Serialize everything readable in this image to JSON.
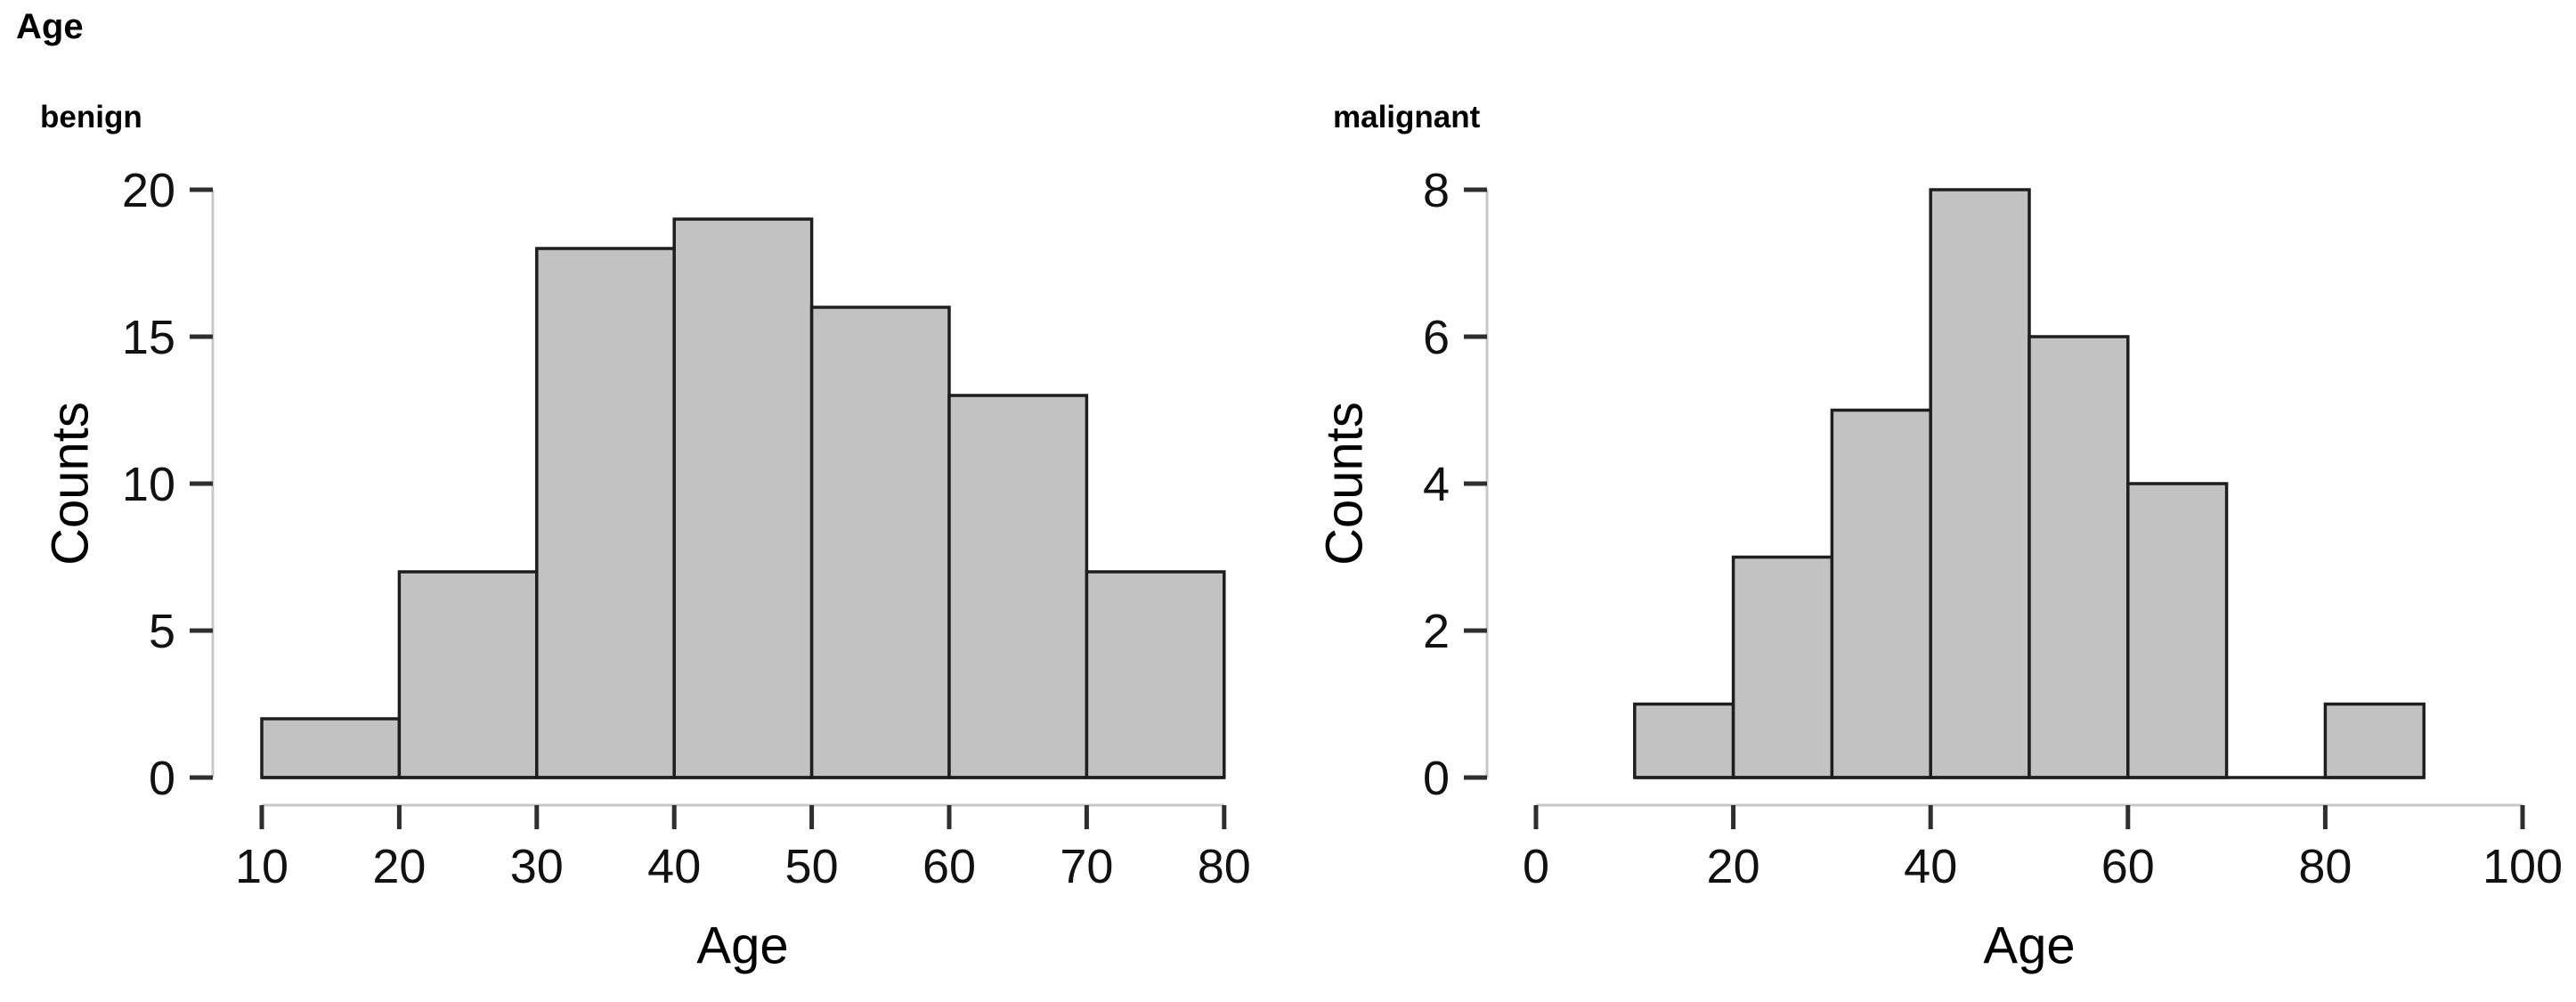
{
  "figure": {
    "title": "Age"
  },
  "colors": {
    "bar_fill": "#c2c2c2",
    "bar_stroke": "#1e1e1e",
    "axis_line": "#c8c8c8",
    "tick": "#2e2e2e",
    "text": "#111111"
  },
  "chart_data": [
    {
      "type": "bar",
      "panel_label": "benign",
      "xlabel": "Age",
      "ylabel": "Counts",
      "bin_edges": [
        10,
        20,
        30,
        40,
        50,
        60,
        70,
        80
      ],
      "counts": [
        2,
        7,
        18,
        19,
        16,
        13,
        7
      ],
      "x_ticks": [
        10,
        20,
        30,
        40,
        50,
        60,
        70,
        80
      ],
      "y_ticks": [
        0,
        5,
        10,
        15,
        20
      ],
      "xlim": [
        10,
        80
      ],
      "ylim": [
        0,
        20
      ],
      "grid": false,
      "legend_position": null
    },
    {
      "type": "bar",
      "panel_label": "malignant",
      "xlabel": "Age",
      "ylabel": "Counts",
      "bin_edges": [
        10,
        20,
        30,
        40,
        50,
        60,
        70,
        80,
        90
      ],
      "counts": [
        1,
        3,
        5,
        8,
        6,
        4,
        0,
        1
      ],
      "x_ticks": [
        0,
        20,
        40,
        60,
        80,
        100
      ],
      "y_ticks": [
        0,
        2,
        4,
        6,
        8
      ],
      "xlim": [
        0,
        100
      ],
      "ylim": [
        0,
        8
      ],
      "grid": false,
      "legend_position": null
    }
  ]
}
